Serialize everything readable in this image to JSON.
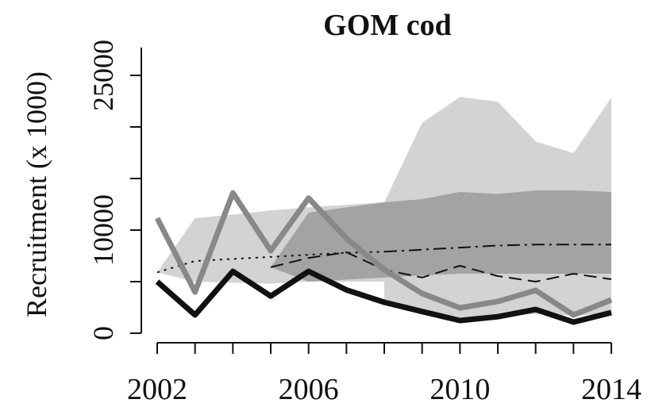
{
  "chart_data": {
    "type": "line",
    "title": "GOM cod",
    "ylabel": "Recruitment (x 1000)",
    "x": [
      2002,
      2003,
      2004,
      2005,
      2006,
      2007,
      2008,
      2009,
      2010,
      2011,
      2012,
      2013,
      2014
    ],
    "xlim": [
      2001.6,
      2014.4
    ],
    "xticks": [
      2002,
      2006,
      2010,
      2014
    ],
    "xminorticks": [
      2003,
      2004,
      2005,
      2007,
      2008,
      2009,
      2011,
      2012,
      2013
    ],
    "ylim": [
      -800,
      27700
    ],
    "yticks": [
      0,
      10000,
      25000
    ],
    "yminorticks": [
      5000,
      15000,
      20000
    ],
    "bands": [
      {
        "color": "#d3d3d3",
        "lower": [
          5900,
          5000,
          4900,
          4800,
          5000,
          5000,
          5000,
          null,
          null,
          null,
          null,
          null,
          null
        ],
        "upper": [
          5900,
          11150,
          11500,
          11900,
          12200,
          12450,
          12700,
          null,
          null,
          null,
          null,
          null,
          null
        ]
      },
      {
        "color": "#d3d3d3",
        "lower": [
          null,
          null,
          null,
          null,
          null,
          null,
          3000,
          2300,
          1540,
          1700,
          1850,
          1700,
          1930
        ],
        "upper": [
          null,
          null,
          null,
          null,
          null,
          null,
          12700,
          20400,
          22900,
          22460,
          18600,
          17460,
          22850
        ]
      },
      {
        "color": "#a3a3a3",
        "lower": [
          null,
          null,
          null,
          6400,
          5000,
          5200,
          5400,
          5600,
          5770,
          5770,
          5770,
          5770,
          5770
        ],
        "upper": [
          null,
          null,
          null,
          6400,
          11700,
          12200,
          12700,
          13000,
          13700,
          13500,
          13850,
          13850,
          13700
        ]
      }
    ],
    "series": [
      {
        "color": "#111111",
        "width": 2,
        "dash": "dotted",
        "values": [
          5900,
          7000,
          7200,
          7400,
          7600,
          7800,
          7900,
          null,
          null,
          null,
          null,
          null,
          null
        ]
      },
      {
        "color": "#111111",
        "width": 2,
        "dash": "dashdot",
        "values": [
          null,
          null,
          null,
          null,
          null,
          null,
          7900,
          8100,
          8300,
          8500,
          8600,
          8600,
          8600
        ]
      },
      {
        "color": "#111111",
        "width": 2,
        "dash": "dashed",
        "values": [
          null,
          null,
          null,
          6400,
          7300,
          7850,
          6150,
          5400,
          6540,
          5540,
          5000,
          5770,
          5230
        ]
      },
      {
        "color": "#888888",
        "width": 7,
        "dash": "solid",
        "values": [
          11150,
          4000,
          13600,
          8000,
          13100,
          9200,
          6150,
          3850,
          2460,
          3080,
          4150,
          1770,
          3230
        ]
      },
      {
        "color": "#111111",
        "width": 7,
        "dash": "solid",
        "values": [
          5000,
          1770,
          6000,
          3600,
          6000,
          4200,
          3000,
          2100,
          1230,
          1600,
          2300,
          1080,
          2000
        ]
      }
    ]
  }
}
